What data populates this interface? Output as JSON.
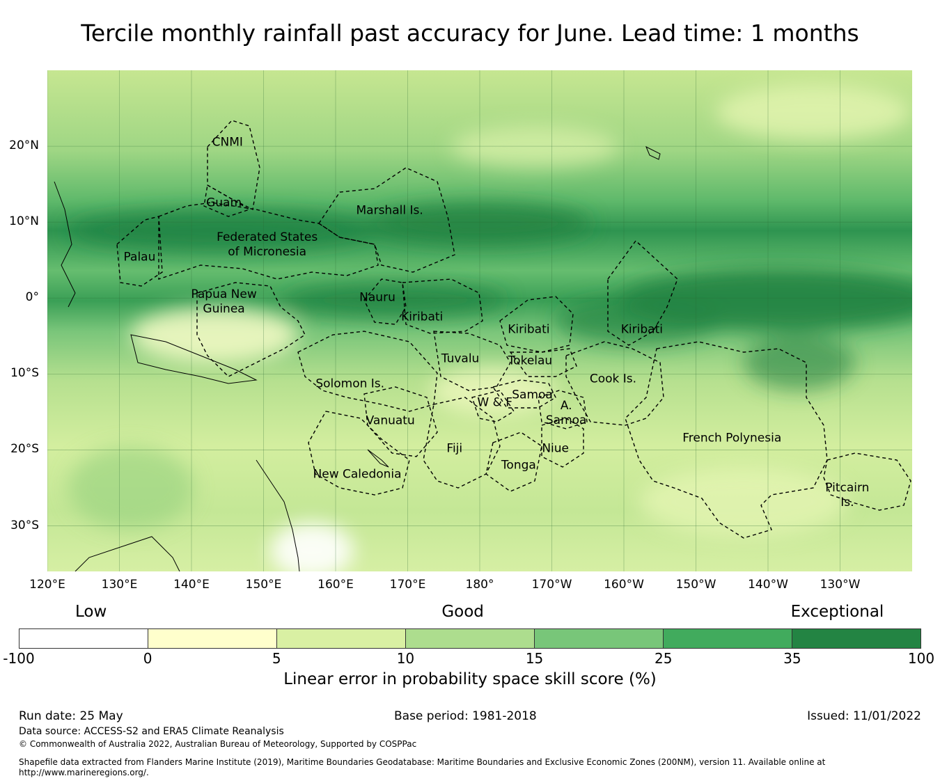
{
  "title": "Tercile monthly rainfall past accuracy for June. Lead time: 1 months",
  "map": {
    "lat_labels": [
      "20°N",
      "10°N",
      "0°",
      "10°S",
      "20°S",
      "30°S"
    ],
    "lon_labels": [
      "120°E",
      "130°E",
      "140°E",
      "150°E",
      "160°E",
      "170°E",
      "180°",
      "170°W",
      "160°W",
      "150°W",
      "140°W",
      "130°W"
    ],
    "regions": [
      {
        "name": "CNMI",
        "lat": 20.5,
        "lon": 145.0
      },
      {
        "name": "Guam",
        "lat": 12.5,
        "lon": 144.5
      },
      {
        "name": "Marshall Is.",
        "lat": 11.5,
        "lon": 167.5
      },
      {
        "name": "Federated States of Micronesia",
        "lat": 7.0,
        "lon": 150.5
      },
      {
        "name": "Palau",
        "lat": 5.3,
        "lon": 132.8
      },
      {
        "name": "Papua New Guinea",
        "lat": -0.5,
        "lon": 144.5
      },
      {
        "name": "Nauru",
        "lat": 0.0,
        "lon": 165.8
      },
      {
        "name": "Kiribati",
        "lat": -2.5,
        "lon": 172.0
      },
      {
        "name": "Kiribati",
        "lat": -4.2,
        "lon": -173.2
      },
      {
        "name": "Kiribati",
        "lat": -4.2,
        "lon": -157.5
      },
      {
        "name": "Tuvalu",
        "lat": -8.0,
        "lon": 177.3
      },
      {
        "name": "Tokelau",
        "lat": -8.3,
        "lon": -173.0
      },
      {
        "name": "Cook Is.",
        "lat": -10.7,
        "lon": -161.5
      },
      {
        "name": "Solomon Is.",
        "lat": -11.3,
        "lon": 162.0
      },
      {
        "name": "Samoa",
        "lat": -12.8,
        "lon": -172.7
      },
      {
        "name": "W & F",
        "lat": -13.8,
        "lon": -177.9
      },
      {
        "name": "A. Samoa",
        "lat": -15.2,
        "lon": -168.0
      },
      {
        "name": "Vanuatu",
        "lat": -16.2,
        "lon": 167.6
      },
      {
        "name": "Fiji",
        "lat": -19.9,
        "lon": 176.5
      },
      {
        "name": "Niue",
        "lat": -19.9,
        "lon": -169.5
      },
      {
        "name": "French Polynesia",
        "lat": -18.5,
        "lon": -145.0
      },
      {
        "name": "Tonga",
        "lat": -22.1,
        "lon": -174.6
      },
      {
        "name": "New Caledonia",
        "lat": -23.3,
        "lon": 163.0
      },
      {
        "name": "Pitcairn Is.",
        "lat": -26.0,
        "lon": -129.0
      }
    ]
  },
  "colorbar": {
    "categories": [
      {
        "label": "Low",
        "pos": 0.08
      },
      {
        "label": "Good",
        "pos": 0.492
      },
      {
        "label": "Exceptional",
        "pos": 0.907
      }
    ],
    "ticks": [
      "-100",
      "0",
      "5",
      "10",
      "15",
      "25",
      "35",
      "100"
    ],
    "colors": [
      "#ffffff",
      "#ffffcc",
      "#d9f0a3",
      "#addd8e",
      "#78c679",
      "#41ab5d",
      "#238443"
    ],
    "title": "Linear error in probability space skill score (%)"
  },
  "footer": {
    "run_date": "Run date: 25 May",
    "base_period": "Base period: 1981-2018",
    "issued": "Issued: 11/01/2022",
    "data_source": "Data source: ACCESS-S2 and ERA5 Climate Reanalysis",
    "copyright": "© Commonwealth of Australia 2022, Australian Bureau of Meteorology, Supported by COSPPac",
    "shapefile": "Shapefile data extracted from Flanders Marine Institute (2019), Maritime Boundaries Geodatabase: Maritime Boundaries and Exclusive Economic Zones (200NM), version 11. Available online at http://www.marineregions.org/."
  }
}
